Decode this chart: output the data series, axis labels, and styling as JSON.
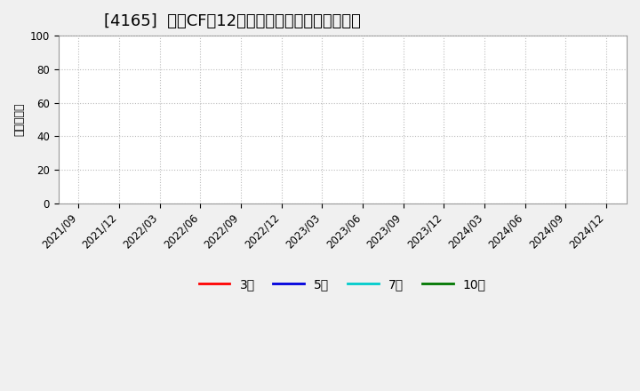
{
  "title": "[4165]  営業CFの12か月移動合計の平均値の推移",
  "ylabel": "（百万円）",
  "ylim": [
    0,
    100
  ],
  "yticks": [
    0,
    20,
    40,
    60,
    80,
    100
  ],
  "xlabels": [
    "2021/09",
    "2021/12",
    "2022/03",
    "2022/06",
    "2022/09",
    "2022/12",
    "2023/03",
    "2023/06",
    "2023/09",
    "2023/12",
    "2024/03",
    "2024/06",
    "2024/09",
    "2024/12"
  ],
  "legend_entries": [
    {
      "label": "3年",
      "color": "#ff0000"
    },
    {
      "label": "5年",
      "color": "#0000dd"
    },
    {
      "label": "7年",
      "color": "#00cccc"
    },
    {
      "label": "10年",
      "color": "#007700"
    }
  ],
  "grid_color": "#bbbbbb",
  "bg_color": "#ffffff",
  "outer_bg_color": "#f0f0f0",
  "title_fontsize": 13,
  "axis_fontsize": 9,
  "tick_fontsize": 8.5,
  "legend_fontsize": 10
}
